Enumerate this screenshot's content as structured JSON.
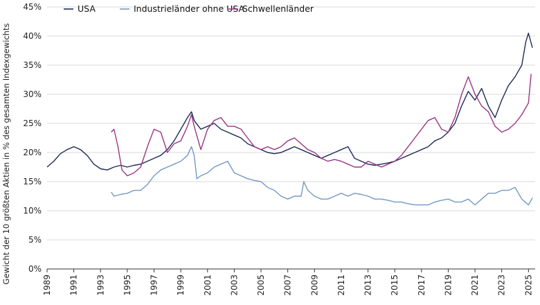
{
  "chart_data": {
    "type": "line",
    "title": "",
    "xlabel": "",
    "ylabel": "Gewicht der 10 größten Aktien in % des gesamten Indexgewichts",
    "xlim": [
      1989,
      2025.5
    ],
    "ylim": [
      0,
      45
    ],
    "grid": "horizontal",
    "legend_position": "top-left",
    "x_ticks": [
      "1989",
      "1991",
      "1993",
      "1995",
      "1997",
      "1999",
      "2001",
      "2003",
      "2005",
      "2007",
      "2009",
      "2011",
      "2013",
      "2015",
      "2017",
      "2019",
      "2021",
      "2023",
      "2025"
    ],
    "y_ticks": [
      "0%",
      "5%",
      "10%",
      "15%",
      "20%",
      "25%",
      "30%",
      "35%",
      "40%",
      "45%"
    ],
    "series": [
      {
        "name": "USA",
        "color": "#1f2a56",
        "x": [
          1989.0,
          1989.5,
          1990.0,
          1990.5,
          1991.0,
          1991.5,
          1992.0,
          1992.5,
          1993.0,
          1993.5,
          1994.0,
          1994.5,
          1995.0,
          1995.5,
          1996.0,
          1996.5,
          1997.0,
          1997.5,
          1998.0,
          1998.5,
          1999.0,
          1999.5,
          1999.8,
          2000.0,
          2000.5,
          2001.0,
          2001.5,
          2002.0,
          2002.5,
          2003.0,
          2003.5,
          2004.0,
          2004.5,
          2005.0,
          2005.5,
          2006.0,
          2006.5,
          2007.0,
          2007.5,
          2008.0,
          2008.5,
          2009.0,
          2009.5,
          2010.0,
          2010.5,
          2011.0,
          2011.5,
          2012.0,
          2012.5,
          2013.0,
          2013.5,
          2014.0,
          2014.5,
          2015.0,
          2015.5,
          2016.0,
          2016.5,
          2017.0,
          2017.5,
          2018.0,
          2018.5,
          2019.0,
          2019.5,
          2020.0,
          2020.5,
          2021.0,
          2021.5,
          2022.0,
          2022.5,
          2023.0,
          2023.5,
          2024.0,
          2024.5,
          2024.8,
          2025.0,
          2025.3
        ],
        "values": [
          17.5,
          18.5,
          19.8,
          20.5,
          21.0,
          20.5,
          19.5,
          18.0,
          17.2,
          17.0,
          17.5,
          17.8,
          17.5,
          17.8,
          18.0,
          18.5,
          19.0,
          19.5,
          20.5,
          22.0,
          24.0,
          26.0,
          27.0,
          25.5,
          24.0,
          24.5,
          25.0,
          24.0,
          23.5,
          23.0,
          22.5,
          21.5,
          21.0,
          20.5,
          20.0,
          19.8,
          20.0,
          20.5,
          21.0,
          20.5,
          20.0,
          19.5,
          19.0,
          19.5,
          20.0,
          20.5,
          21.0,
          19.0,
          18.5,
          18.0,
          17.8,
          18.0,
          18.2,
          18.5,
          19.0,
          19.5,
          20.0,
          20.5,
          21.0,
          22.0,
          22.5,
          23.5,
          25.0,
          28.0,
          30.5,
          29.0,
          31.0,
          28.0,
          26.0,
          29.0,
          31.5,
          33.0,
          35.0,
          39.0,
          40.5,
          38.0
        ]
      },
      {
        "name": "Industrieländer ohne USA",
        "color": "#7398c3",
        "x": [
          1993.8,
          1994.0,
          1994.5,
          1995.0,
          1995.5,
          1996.0,
          1996.5,
          1997.0,
          1997.5,
          1998.0,
          1998.5,
          1999.0,
          1999.5,
          1999.8,
          2000.0,
          2000.2,
          2000.5,
          2001.0,
          2001.5,
          2002.0,
          2002.5,
          2003.0,
          2003.5,
          2004.0,
          2004.5,
          2005.0,
          2005.5,
          2006.0,
          2006.5,
          2007.0,
          2007.5,
          2008.0,
          2008.2,
          2008.5,
          2009.0,
          2009.5,
          2010.0,
          2010.5,
          2011.0,
          2011.5,
          2012.0,
          2012.5,
          2013.0,
          2013.5,
          2014.0,
          2014.5,
          2015.0,
          2015.5,
          2016.0,
          2016.5,
          2017.0,
          2017.5,
          2018.0,
          2018.5,
          2019.0,
          2019.5,
          2020.0,
          2020.5,
          2021.0,
          2021.5,
          2022.0,
          2022.5,
          2023.0,
          2023.5,
          2024.0,
          2024.5,
          2025.0,
          2025.3
        ],
        "values": [
          13.2,
          12.5,
          12.8,
          13.0,
          13.5,
          13.5,
          14.5,
          16.0,
          17.0,
          17.5,
          18.0,
          18.5,
          19.5,
          21.0,
          19.5,
          15.5,
          16.0,
          16.5,
          17.5,
          18.0,
          18.5,
          16.5,
          16.0,
          15.5,
          15.2,
          15.0,
          14.0,
          13.5,
          12.5,
          12.0,
          12.5,
          12.5,
          15.0,
          13.5,
          12.5,
          12.0,
          12.0,
          12.5,
          13.0,
          12.5,
          13.0,
          12.8,
          12.5,
          12.0,
          12.0,
          11.8,
          11.5,
          11.5,
          11.2,
          11.0,
          11.0,
          11.0,
          11.5,
          11.8,
          12.0,
          11.5,
          11.5,
          12.0,
          11.0,
          12.0,
          13.0,
          13.0,
          13.5,
          13.5,
          14.0,
          12.0,
          11.0,
          12.2
        ]
      },
      {
        "name": "Schwellenländer",
        "color": "#9a3585",
        "x": [
          1993.8,
          1994.0,
          1994.3,
          1994.6,
          1995.0,
          1995.5,
          1996.0,
          1996.5,
          1997.0,
          1997.5,
          1998.0,
          1998.5,
          1999.0,
          1999.5,
          1999.8,
          2000.0,
          2000.5,
          2001.0,
          2001.5,
          2002.0,
          2002.5,
          2003.0,
          2003.5,
          2004.0,
          2004.5,
          2005.0,
          2005.5,
          2006.0,
          2006.5,
          2007.0,
          2007.5,
          2008.0,
          2008.5,
          2009.0,
          2009.5,
          2010.0,
          2010.5,
          2011.0,
          2011.5,
          2012.0,
          2012.5,
          2013.0,
          2013.5,
          2014.0,
          2014.5,
          2015.0,
          2015.5,
          2016.0,
          2016.5,
          2017.0,
          2017.5,
          2018.0,
          2018.5,
          2019.0,
          2019.5,
          2020.0,
          2020.5,
          2021.0,
          2021.5,
          2022.0,
          2022.5,
          2023.0,
          2023.5,
          2024.0,
          2024.5,
          2025.0,
          2025.2
        ],
        "values": [
          23.5,
          24.0,
          21.0,
          17.0,
          16.0,
          16.5,
          17.5,
          21.0,
          24.0,
          23.5,
          20.0,
          21.5,
          22.0,
          24.5,
          26.5,
          24.5,
          20.5,
          24.0,
          25.5,
          26.0,
          24.5,
          24.5,
          24.0,
          22.5,
          21.0,
          20.5,
          21.0,
          20.5,
          21.0,
          22.0,
          22.5,
          21.5,
          20.5,
          20.0,
          19.0,
          18.5,
          18.8,
          18.5,
          18.0,
          17.5,
          17.5,
          18.5,
          18.0,
          17.5,
          18.0,
          18.5,
          19.5,
          21.0,
          22.5,
          24.0,
          25.5,
          26.0,
          24.0,
          23.5,
          26.0,
          30.0,
          33.0,
          30.0,
          28.0,
          27.0,
          24.5,
          23.5,
          24.0,
          25.0,
          26.5,
          28.5,
          33.5
        ]
      }
    ]
  }
}
